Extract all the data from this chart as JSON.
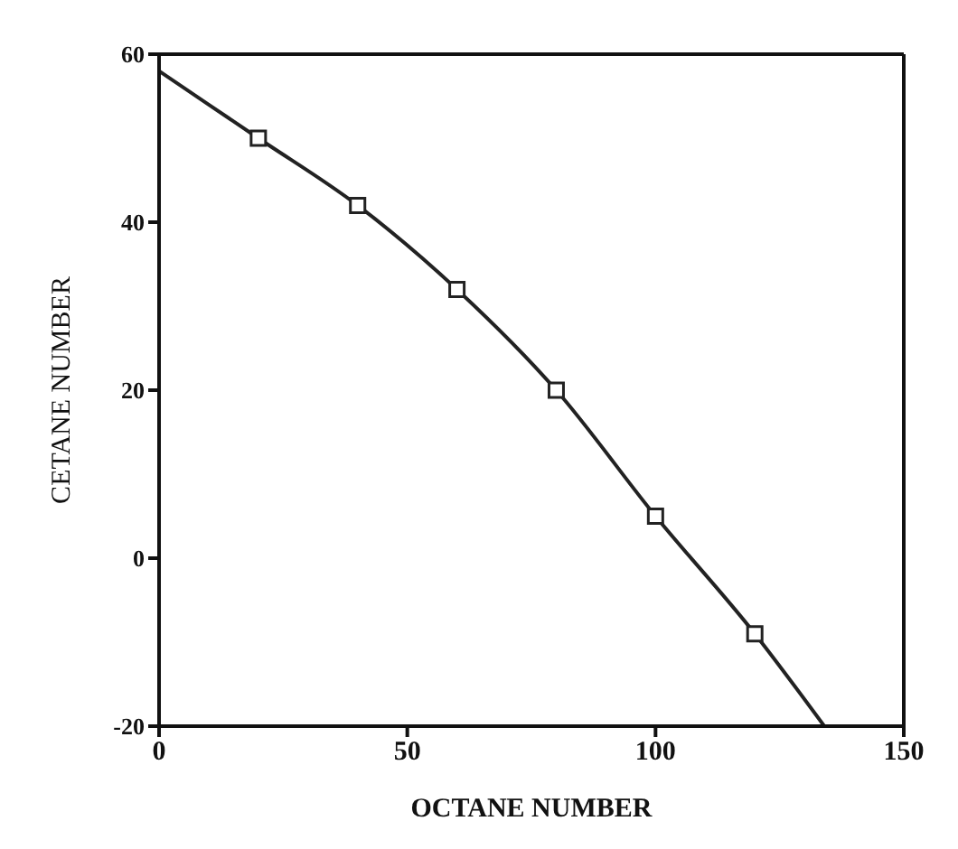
{
  "chart_data": {
    "type": "scatter",
    "xlabel": "OCTANE NUMBER",
    "ylabel": "CETANE NUMBER",
    "xlim": [
      0,
      150
    ],
    "xticks": [
      0,
      50,
      100,
      150
    ],
    "ylim": [
      -20,
      60
    ],
    "yticks": [
      -20,
      0,
      20,
      40,
      60
    ],
    "series": [
      {
        "type": "line",
        "color": "#222222",
        "x": [
          0,
          20,
          40,
          60,
          80,
          100,
          120,
          134
        ],
        "values": [
          58,
          50,
          42,
          32,
          20,
          5,
          -9,
          -20
        ],
        "marker": "none",
        "line_style": "solid"
      },
      {
        "color": "#222222",
        "x": [
          20,
          40,
          60,
          80,
          100,
          120
        ],
        "values": [
          50,
          42,
          32,
          20,
          5,
          -9
        ],
        "marker": "square"
      }
    ]
  }
}
